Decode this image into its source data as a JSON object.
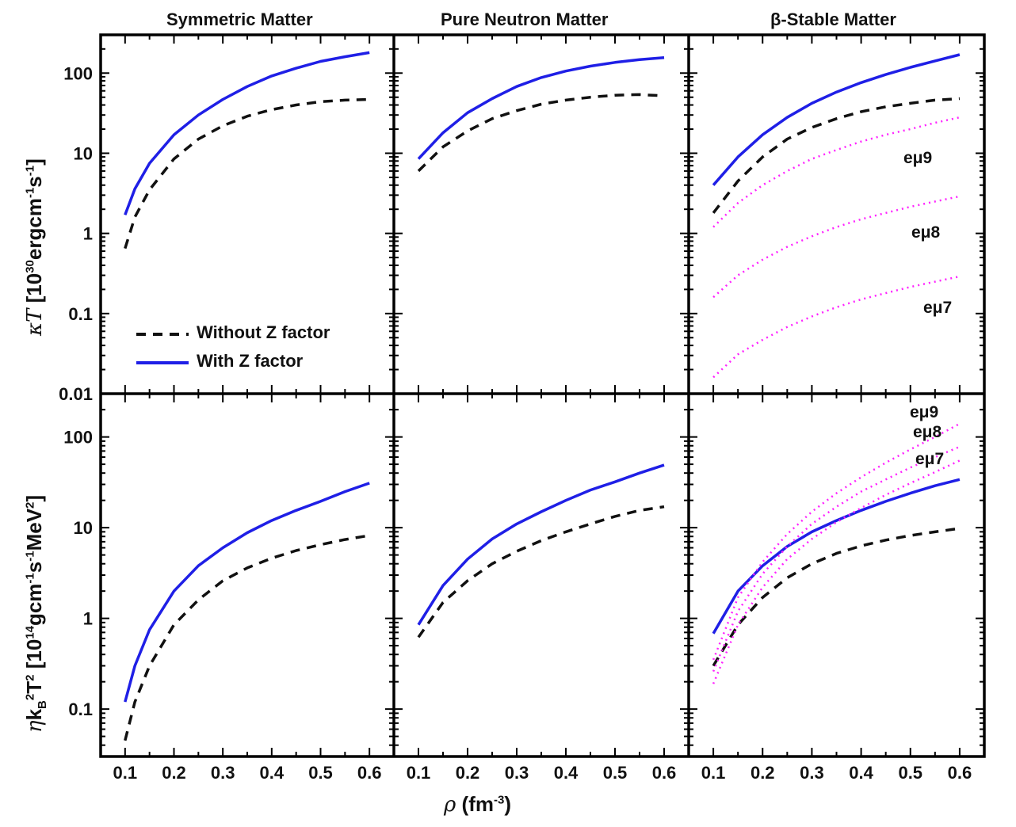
{
  "column_titles": [
    "Symmetric Matter",
    "Pure Neutron Matter",
    "β-Stable Matter"
  ],
  "xlabel": {
    "sym": "ρ",
    "text": "(fm",
    "sup": "-3",
    "close": ")"
  },
  "ylabel_top": {
    "sym": "κT",
    "text": "[10",
    "sup1": "30",
    "text2": "ergcm",
    "sup2": "-1",
    "text3": "s",
    "sup3": "-1",
    "close": "]"
  },
  "ylabel_bottom": {
    "sym": "η",
    "text": "k",
    "sub": "B",
    "sup0": "2",
    "text1": "T",
    "sup1": "2",
    "text2": "[10",
    "sup2": "14",
    "text3": "gcm",
    "sup3": "-1",
    "text4": "s",
    "sup4": "-1",
    "text5": "MeV",
    "sup5": "2",
    "close": "]"
  },
  "legend": {
    "without": "Without Z factor",
    "with": "With Z factor"
  },
  "colors": {
    "with": "#1f1fe6",
    "without": "#111111",
    "emu": "#ff22ff",
    "axis": "#000000"
  },
  "chart_data": [
    {
      "type": "line",
      "panel": "top-left",
      "title": "Symmetric Matter",
      "yscale": "log",
      "xlim": [
        0.05,
        0.65
      ],
      "ylim": [
        0.01,
        300
      ],
      "xticks": [
        "0.1",
        "0.2",
        "0.3",
        "0.4",
        "0.5",
        "0.6"
      ],
      "yticks": [
        {
          "v": 0.01,
          "l": "0.01"
        },
        {
          "v": 0.1,
          "l": "0.1"
        },
        {
          "v": 1,
          "l": "1"
        },
        {
          "v": 10,
          "l": "10"
        },
        {
          "v": 100,
          "l": "100"
        }
      ],
      "series": [
        {
          "name": "Without Z factor",
          "style": "dashed",
          "color": "#111111",
          "x": [
            0.1,
            0.12,
            0.15,
            0.2,
            0.25,
            0.3,
            0.35,
            0.4,
            0.45,
            0.5,
            0.55,
            0.6
          ],
          "y": [
            0.65,
            1.6,
            3.5,
            8.5,
            15,
            22,
            29,
            35,
            40,
            44,
            46,
            47
          ]
        },
        {
          "name": "With Z factor",
          "style": "solid",
          "color": "#1f1fe6",
          "x": [
            0.1,
            0.12,
            0.15,
            0.2,
            0.25,
            0.3,
            0.35,
            0.4,
            0.45,
            0.5,
            0.55,
            0.6
          ],
          "y": [
            1.7,
            3.6,
            7.5,
            17,
            30,
            47,
            68,
            92,
            115,
            140,
            160,
            180
          ]
        }
      ]
    },
    {
      "type": "line",
      "panel": "top-middle",
      "title": "Pure Neutron Matter",
      "yscale": "log",
      "xlim": [
        0.05,
        0.65
      ],
      "ylim": [
        0.01,
        300
      ],
      "xticks": [
        "0.1",
        "0.2",
        "0.3",
        "0.4",
        "0.5",
        "0.6"
      ],
      "series": [
        {
          "name": "Without Z factor",
          "style": "dashed",
          "color": "#111111",
          "x": [
            0.1,
            0.15,
            0.2,
            0.25,
            0.3,
            0.35,
            0.4,
            0.45,
            0.5,
            0.55,
            0.6
          ],
          "y": [
            6,
            12,
            19,
            27,
            34,
            41,
            46,
            50,
            53,
            54,
            52
          ]
        },
        {
          "name": "With Z factor",
          "style": "solid",
          "color": "#1f1fe6",
          "x": [
            0.1,
            0.15,
            0.2,
            0.25,
            0.3,
            0.35,
            0.4,
            0.45,
            0.5,
            0.55,
            0.6
          ],
          "y": [
            8.5,
            18,
            32,
            48,
            68,
            88,
            106,
            122,
            136,
            147,
            156
          ]
        }
      ]
    },
    {
      "type": "line",
      "panel": "top-right",
      "title": "β-Stable Matter",
      "yscale": "log",
      "xlim": [
        0.05,
        0.65
      ],
      "ylim": [
        0.01,
        300
      ],
      "xticks": [
        "0.1",
        "0.2",
        "0.3",
        "0.4",
        "0.5",
        "0.6"
      ],
      "series": [
        {
          "name": "Without Z factor",
          "style": "dashed",
          "color": "#111111",
          "x": [
            0.1,
            0.15,
            0.2,
            0.25,
            0.3,
            0.35,
            0.4,
            0.45,
            0.5,
            0.55,
            0.6
          ],
          "y": [
            1.8,
            4.5,
            9,
            15,
            21,
            27,
            33,
            38,
            42,
            46,
            48
          ]
        },
        {
          "name": "With Z factor",
          "style": "solid",
          "color": "#1f1fe6",
          "x": [
            0.1,
            0.15,
            0.2,
            0.25,
            0.3,
            0.35,
            0.4,
            0.45,
            0.5,
            0.55,
            0.6
          ],
          "y": [
            4,
            9,
            17,
            28,
            42,
            58,
            76,
            96,
            118,
            142,
            170
          ]
        },
        {
          "name": "eμ9",
          "style": "dotted",
          "color": "#ff22ff",
          "x": [
            0.1,
            0.15,
            0.2,
            0.25,
            0.3,
            0.35,
            0.4,
            0.45,
            0.5,
            0.55,
            0.6
          ],
          "y": [
            1.2,
            2.4,
            4,
            6,
            8.5,
            11,
            14,
            17,
            20,
            24,
            28
          ]
        },
        {
          "name": "eμ8",
          "style": "dotted",
          "color": "#ff22ff",
          "x": [
            0.1,
            0.15,
            0.2,
            0.25,
            0.3,
            0.35,
            0.4,
            0.45,
            0.5,
            0.55,
            0.6
          ],
          "y": [
            0.16,
            0.3,
            0.47,
            0.68,
            0.92,
            1.2,
            1.5,
            1.8,
            2.15,
            2.5,
            2.9
          ]
        },
        {
          "name": "eμ7",
          "style": "dotted",
          "color": "#ff22ff",
          "x": [
            0.1,
            0.15,
            0.2,
            0.25,
            0.3,
            0.35,
            0.4,
            0.45,
            0.5,
            0.55,
            0.6
          ],
          "y": [
            0.016,
            0.031,
            0.047,
            0.068,
            0.092,
            0.12,
            0.15,
            0.18,
            0.215,
            0.25,
            0.29
          ]
        }
      ],
      "annotations": [
        "eμ9",
        "eμ8",
        "eμ7"
      ]
    },
    {
      "type": "line",
      "panel": "bottom-left",
      "yscale": "log",
      "xlim": [
        0.05,
        0.65
      ],
      "ylim": [
        0.03,
        300
      ],
      "xticks": [
        "0.1",
        "0.2",
        "0.3",
        "0.4",
        "0.5",
        "0.6"
      ],
      "yticks": [
        {
          "v": 0.1,
          "l": "0.1"
        },
        {
          "v": 1,
          "l": "1"
        },
        {
          "v": 10,
          "l": "10"
        },
        {
          "v": 100,
          "l": "100"
        }
      ],
      "series": [
        {
          "name": "Without Z factor",
          "style": "dashed",
          "color": "#111111",
          "x": [
            0.1,
            0.12,
            0.15,
            0.2,
            0.25,
            0.3,
            0.35,
            0.4,
            0.45,
            0.5,
            0.55,
            0.6
          ],
          "y": [
            0.045,
            0.12,
            0.3,
            0.85,
            1.6,
            2.6,
            3.6,
            4.6,
            5.6,
            6.5,
            7.4,
            8.2
          ]
        },
        {
          "name": "With Z factor",
          "style": "solid",
          "color": "#1f1fe6",
          "x": [
            0.1,
            0.12,
            0.15,
            0.2,
            0.25,
            0.3,
            0.35,
            0.4,
            0.45,
            0.5,
            0.55,
            0.6
          ],
          "y": [
            0.12,
            0.3,
            0.75,
            2,
            3.8,
            6,
            8.8,
            12,
            15.5,
            19.5,
            25,
            31
          ]
        }
      ]
    },
    {
      "type": "line",
      "panel": "bottom-middle",
      "yscale": "log",
      "xlim": [
        0.05,
        0.65
      ],
      "ylim": [
        0.03,
        300
      ],
      "xticks": [
        "0.1",
        "0.2",
        "0.3",
        "0.4",
        "0.5",
        "0.6"
      ],
      "series": [
        {
          "name": "Without Z factor",
          "style": "dashed",
          "color": "#111111",
          "x": [
            0.1,
            0.15,
            0.2,
            0.25,
            0.3,
            0.35,
            0.4,
            0.45,
            0.5,
            0.55,
            0.6
          ],
          "y": [
            0.62,
            1.5,
            2.6,
            4,
            5.5,
            7.2,
            9,
            11,
            13.3,
            15.5,
            17
          ]
        },
        {
          "name": "With Z factor",
          "style": "solid",
          "color": "#1f1fe6",
          "x": [
            0.1,
            0.15,
            0.2,
            0.25,
            0.3,
            0.35,
            0.4,
            0.45,
            0.5,
            0.55,
            0.6
          ],
          "y": [
            0.85,
            2.3,
            4.5,
            7.5,
            11,
            15,
            20,
            26,
            32,
            40,
            49
          ]
        }
      ]
    },
    {
      "type": "line",
      "panel": "bottom-right",
      "yscale": "log",
      "xlim": [
        0.05,
        0.65
      ],
      "ylim": [
        0.03,
        300
      ],
      "xticks": [
        "0.1",
        "0.2",
        "0.3",
        "0.4",
        "0.5",
        "0.6"
      ],
      "series": [
        {
          "name": "Without Z factor",
          "style": "dashed",
          "color": "#111111",
          "x": [
            0.1,
            0.15,
            0.2,
            0.25,
            0.3,
            0.35,
            0.4,
            0.45,
            0.5,
            0.55,
            0.6
          ],
          "y": [
            0.3,
            0.85,
            1.7,
            2.8,
            4,
            5.2,
            6.3,
            7.3,
            8.2,
            9,
            9.8
          ]
        },
        {
          "name": "With Z factor",
          "style": "solid",
          "color": "#1f1fe6",
          "x": [
            0.1,
            0.15,
            0.2,
            0.25,
            0.3,
            0.35,
            0.4,
            0.45,
            0.5,
            0.55,
            0.6
          ],
          "y": [
            0.68,
            2,
            3.8,
            6.2,
            9,
            12,
            15.5,
            19.5,
            24,
            29,
            34
          ]
        },
        {
          "name": "eμ9",
          "style": "dotted",
          "color": "#ff22ff",
          "x": [
            0.1,
            0.15,
            0.2,
            0.25,
            0.3,
            0.35,
            0.4,
            0.45,
            0.5,
            0.55,
            0.6
          ],
          "y": [
            0.35,
            1.7,
            4.2,
            8.5,
            15,
            24,
            36,
            52,
            73,
            100,
            140
          ]
        },
        {
          "name": "eμ8",
          "style": "dotted",
          "color": "#ff22ff",
          "x": [
            0.1,
            0.15,
            0.2,
            0.25,
            0.3,
            0.35,
            0.4,
            0.45,
            0.5,
            0.55,
            0.6
          ],
          "y": [
            0.26,
            1.2,
            3.1,
            6.2,
            11,
            17,
            25,
            34,
            46,
            60,
            78
          ]
        },
        {
          "name": "eμ7",
          "style": "dotted",
          "color": "#ff22ff",
          "x": [
            0.1,
            0.15,
            0.2,
            0.25,
            0.3,
            0.35,
            0.4,
            0.45,
            0.5,
            0.55,
            0.6
          ],
          "y": [
            0.19,
            0.85,
            2.2,
            4.5,
            7.5,
            11.5,
            16.5,
            23,
            31,
            41,
            55
          ]
        }
      ],
      "annotations": [
        "eμ9",
        "eμ8",
        "eμ7"
      ]
    }
  ]
}
